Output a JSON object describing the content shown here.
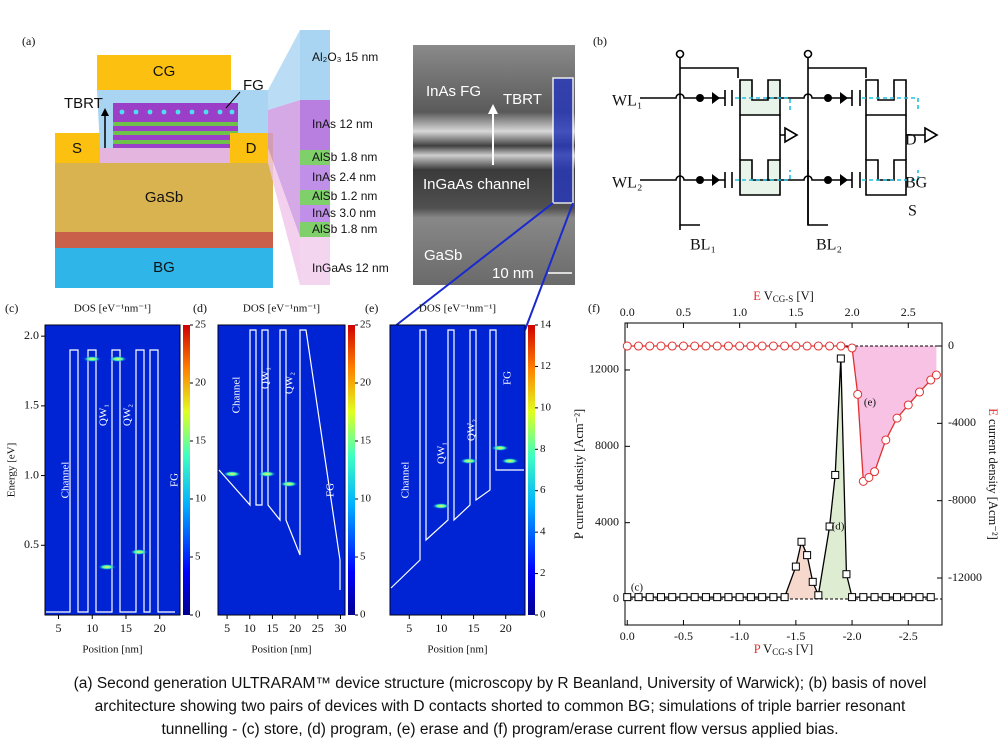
{
  "panel_a": {
    "label": "(a)",
    "cg": "CG",
    "fg": "FG",
    "tbrt": "TBRT",
    "s": "S",
    "d": "D",
    "gasb": "GaSb",
    "bg": "BG",
    "layers": [
      "Al₂O₃ 15 nm",
      "InAs  12 nm",
      "AlSb 1.8 nm",
      "InAs  2.4 nm",
      "AlSb 1.2 nm",
      "InAs  3.0 nm",
      "AlSb 1.8 nm",
      "InGaAs 12 nm"
    ],
    "tem": {
      "fg": "InAs FG",
      "tbrt": "TBRT",
      "channel": "InGaAs channel",
      "substrate": "GaSb",
      "scale": "10 nm"
    }
  },
  "panel_b": {
    "label": "(b)",
    "wl1": "WL₁",
    "wl2": "WL₂",
    "bl1": "BL₁",
    "bl2": "BL₂",
    "d": "D",
    "bg": "BG",
    "s": "S"
  },
  "panels": [
    {
      "label": "(c)",
      "title": "DOS [eV⁻¹nm⁻¹]",
      "xlabel": "Position [nm]",
      "ylabel": "Energy [eV]",
      "xticks": [
        5,
        10,
        15,
        20
      ],
      "xlim": [
        3,
        23
      ],
      "yticks": [
        0.5,
        {
          "value": 1,
          "label": "1.0"
        },
        1.5,
        {
          "value": 2,
          "label": "2.0"
        }
      ],
      "ylim": [
        0,
        2.08
      ],
      "cticks": [
        0,
        5,
        10,
        15,
        20,
        25
      ],
      "clim": [
        0,
        25
      ],
      "regions": [
        "Channel",
        "QW₁",
        "QW₂",
        "FG"
      ]
    },
    {
      "label": "(d)",
      "title": "DOS [eV⁻¹nm⁻¹]",
      "xlabel": "Position [nm]",
      "xticks": [
        5,
        10,
        15,
        20,
        25,
        30
      ],
      "xlim": [
        3,
        31
      ],
      "cticks": [
        0,
        5,
        10,
        15,
        20,
        25
      ],
      "clim": [
        0,
        25
      ],
      "regions": [
        "Channel",
        "QW₁",
        "QW₂",
        "FG"
      ]
    },
    {
      "label": "(e)",
      "title": "DOS [eV⁻¹nm⁻¹]",
      "xlabel": "Position [nm]",
      "xticks": [
        5,
        10,
        15,
        20
      ],
      "xlim": [
        2,
        23
      ],
      "cticks": [
        0,
        2,
        4,
        6,
        8,
        10,
        12,
        14
      ],
      "clim": [
        0,
        14
      ],
      "regions": [
        "Channel",
        "QW₁",
        "QW₂",
        "FG"
      ]
    }
  ],
  "chart_data": {
    "type": "line",
    "label": "(f)",
    "xlabel": {
      "prefix": "P",
      "main": " V",
      "sub": "CG-S",
      "unit": " [V]"
    },
    "x2label": {
      "prefix": "E",
      "main": " V",
      "sub": "CG-S",
      "unit": " [V]"
    },
    "ylabel": "P current density [Acm⁻²]",
    "y2label": {
      "prefix": "E",
      "main": " current density [Acm⁻²]"
    },
    "xlim": [
      0.02,
      -2.8
    ],
    "xticks": [
      {
        "value": 0,
        "label": "0.0"
      },
      {
        "value": -0.5,
        "label": "-0.5"
      },
      {
        "value": -1,
        "label": "-1.0"
      },
      {
        "value": -1.5,
        "label": "-1.5"
      },
      {
        "value": -2,
        "label": "-2.0"
      },
      {
        "value": -2.5,
        "label": "-2.5"
      }
    ],
    "x2lim": [
      -0.02,
      2.8
    ],
    "x2ticks": [
      {
        "value": 0,
        "label": "0.0"
      },
      0.5,
      {
        "value": 1,
        "label": "1.0"
      },
      1.5,
      {
        "value": 2,
        "label": "2.0"
      },
      2.5
    ],
    "ylim": [
      -1360,
      14460
    ],
    "yticks": [
      0,
      4000,
      8000,
      12000
    ],
    "y2lim": [
      -14430,
      1190
    ],
    "y2ticks": [
      0,
      -4000,
      -8000,
      -12000
    ],
    "annotations": [
      "(c)",
      "(d)",
      "(e)"
    ],
    "series": [
      {
        "name": "P",
        "color": "#000000",
        "x": [
          0,
          -0.1,
          -0.2,
          -0.3,
          -0.4,
          -0.5,
          -0.6,
          -0.7,
          -0.8,
          -0.9,
          -1,
          -1.1,
          -1.2,
          -1.3,
          -1.4,
          -1.5,
          -1.55,
          -1.6,
          -1.65,
          -1.7,
          -1.8,
          -1.85,
          -1.9,
          -1.95,
          -2,
          -2.1,
          -2.2,
          -2.3,
          -2.4,
          -2.5,
          -2.6,
          -2.7
        ],
        "values": [
          100,
          100,
          100,
          100,
          100,
          100,
          100,
          100,
          100,
          100,
          100,
          100,
          100,
          100,
          100,
          1700,
          3000,
          2300,
          900,
          200,
          3800,
          6500,
          12600,
          1300,
          100,
          100,
          100,
          100,
          100,
          100,
          100,
          100
        ]
      },
      {
        "name": "E",
        "color": "#e03030",
        "axis": "y2",
        "x": [
          0,
          0.1,
          0.2,
          0.3,
          0.4,
          0.5,
          0.6,
          0.7,
          0.8,
          0.9,
          1,
          1.1,
          1.2,
          1.3,
          1.4,
          1.5,
          1.6,
          1.7,
          1.8,
          1.9,
          2,
          2.05,
          2.1,
          2.15,
          2.2,
          2.3,
          2.4,
          2.5,
          2.6,
          2.7,
          2.75
        ],
        "values": [
          0,
          0,
          0,
          0,
          0,
          0,
          0,
          0,
          0,
          0,
          0,
          0,
          0,
          0,
          0,
          0,
          0,
          0,
          0,
          0,
          -100,
          -2500,
          -7000,
          -6800,
          -6500,
          -4860,
          -3730,
          -3050,
          -2380,
          -1760,
          -1500
        ]
      }
    ]
  },
  "caption": [
    "(a) Second generation ULTRARAM™ device structure (microscopy by R Beanland, University of Warwick); (b) basis of novel",
    "architecture showing two pairs of devices with D contacts shorted to common BG; simulations of triple barrier resonant",
    "tunnelling - (c) store, (d) program, (e) erase and (f) program/erase current flow versus applied bias."
  ]
}
